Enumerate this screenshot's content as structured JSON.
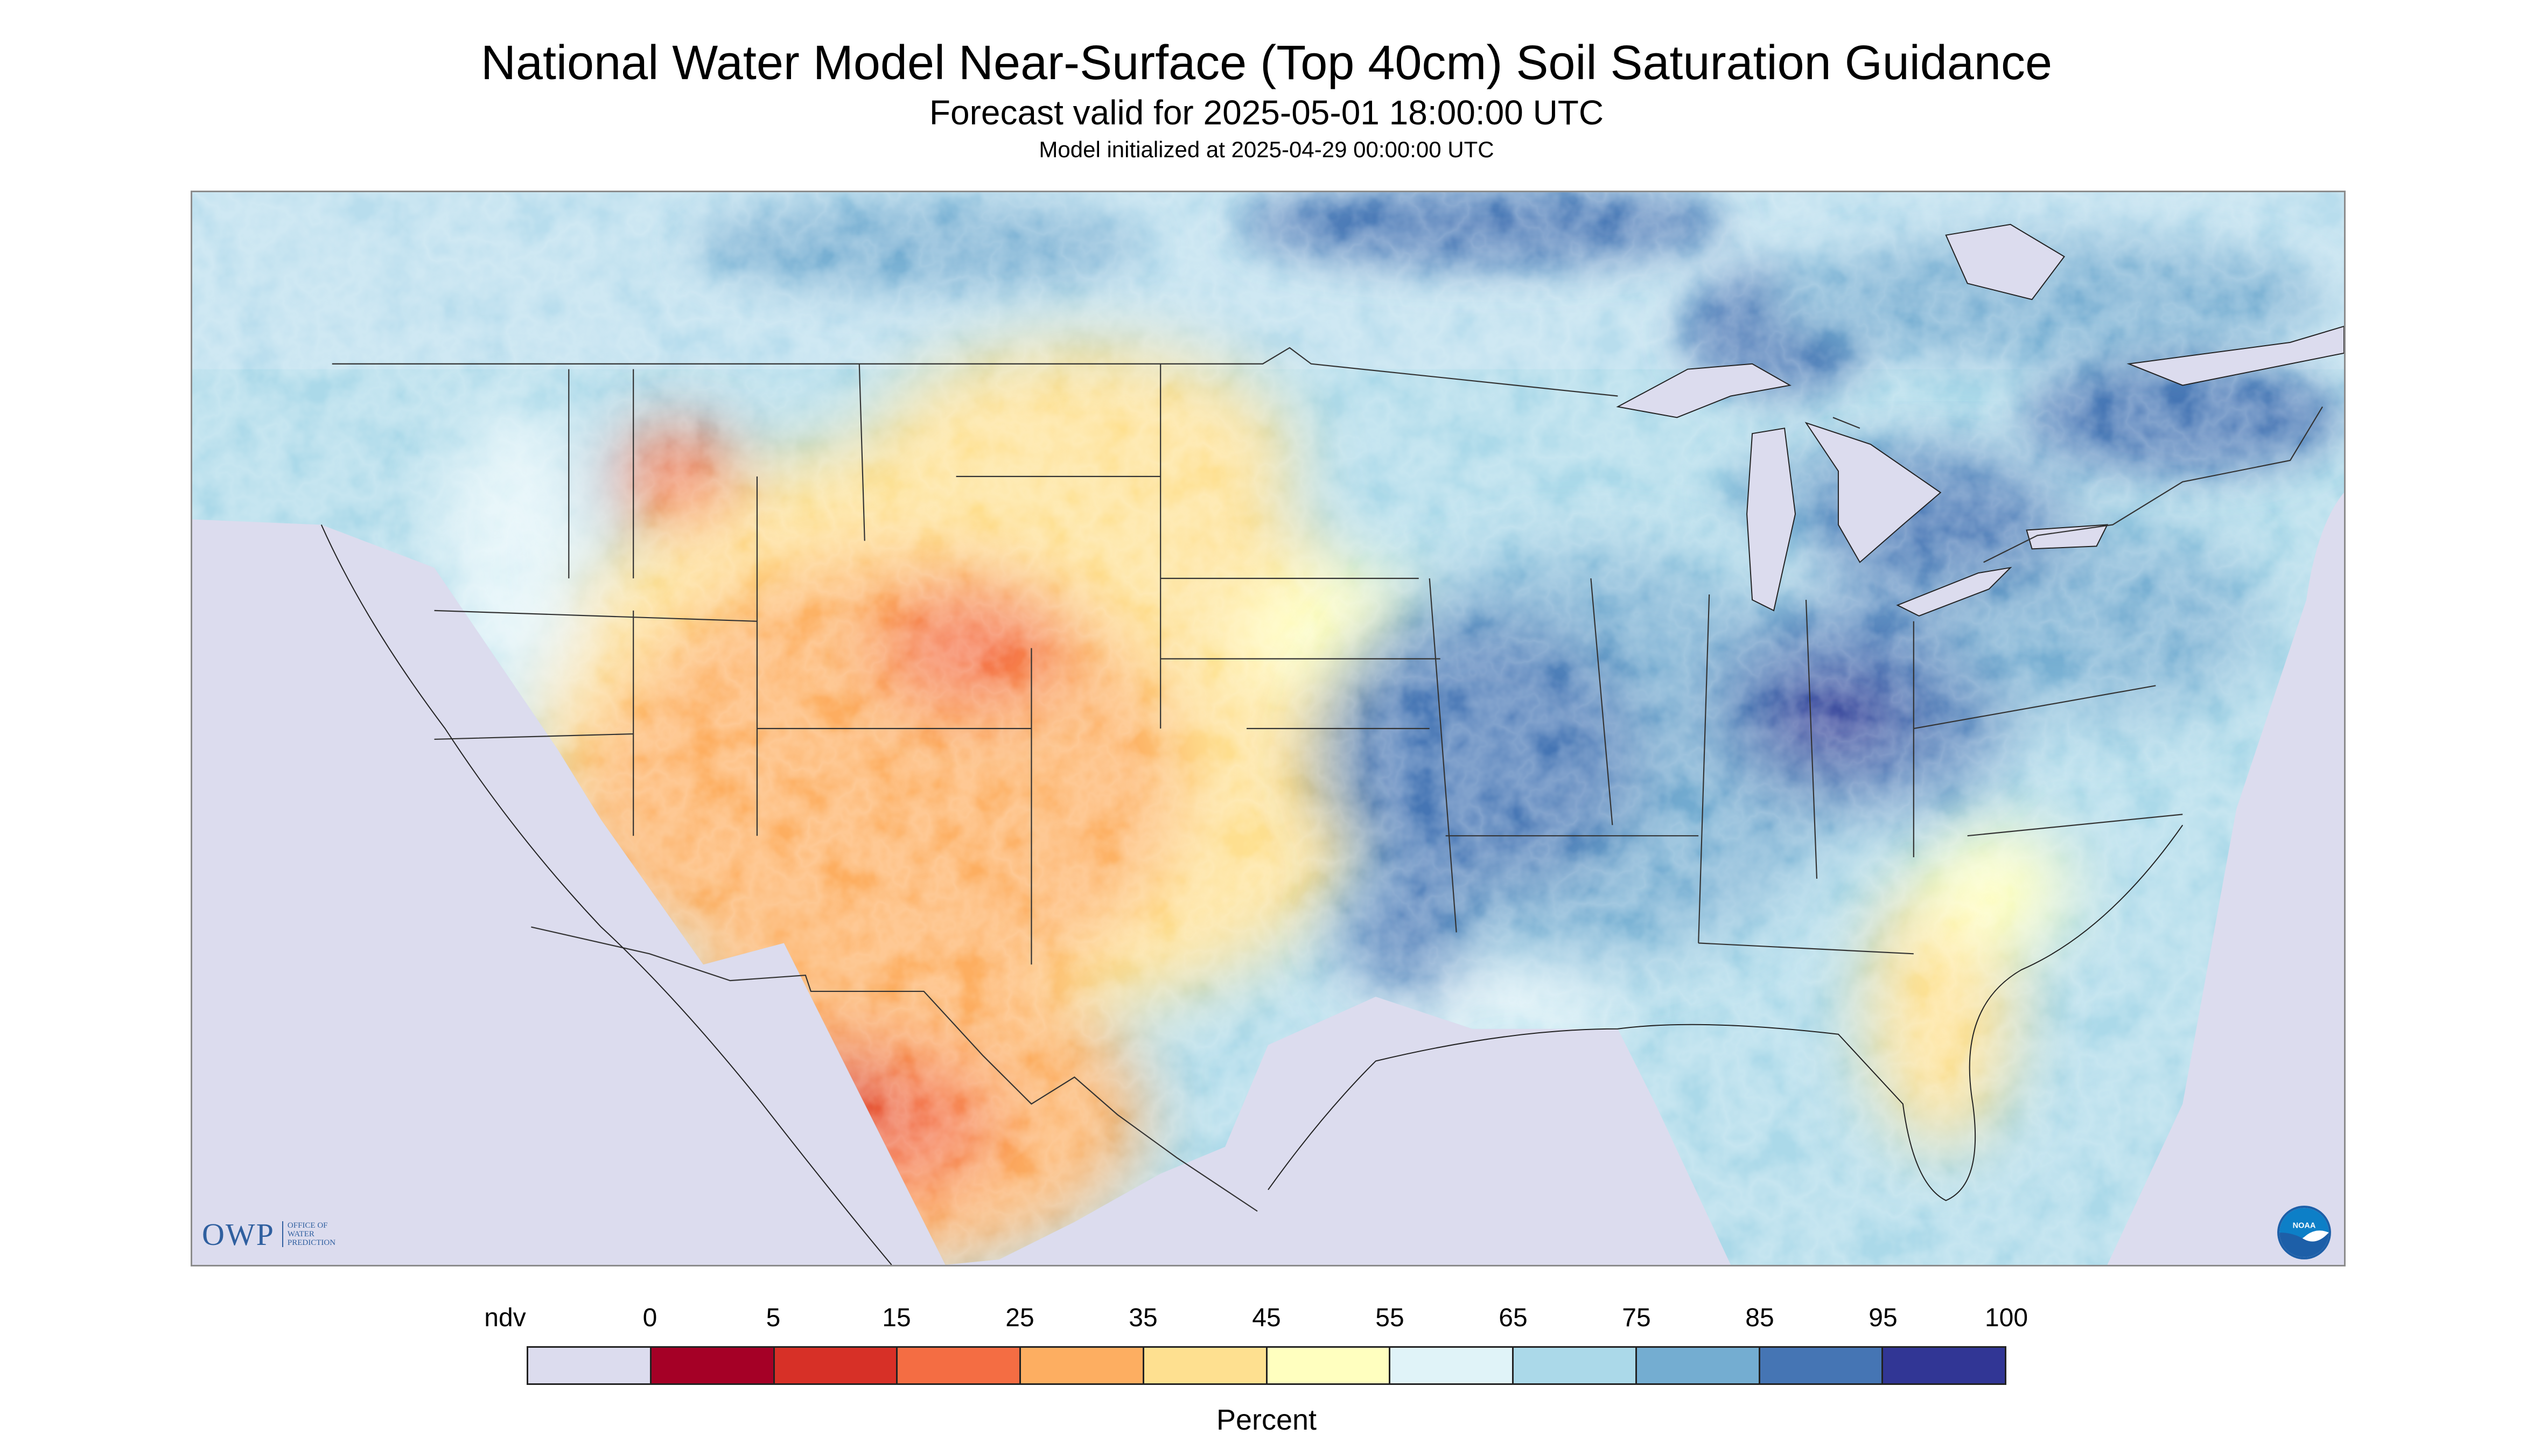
{
  "header": {
    "title": "National Water Model Near-Surface (Top 40cm) Soil Saturation Guidance",
    "subtitle": "Forecast valid for 2025-05-01 18:00:00 UTC",
    "init_line": "Model initialized at 2025-04-29 00:00:00 UTC"
  },
  "map": {
    "description_colors": {
      "ocean_nodata": "#dcdcee",
      "water_bodies": "#dcdcee"
    }
  },
  "logos": {
    "owp_text": "OWP",
    "owp_subtitle": [
      "Office of",
      "Water",
      "Prediction"
    ],
    "noaa_text": "NOAA"
  },
  "legend": {
    "unit_label": "Percent",
    "ticks": [
      "ndv",
      "0",
      "5",
      "15",
      "25",
      "35",
      "45",
      "55",
      "65",
      "75",
      "85",
      "95",
      "100"
    ],
    "colors": [
      "#dcdcee",
      "#a50026",
      "#d73027",
      "#f46d43",
      "#fdae61",
      "#fee090",
      "#ffffbf",
      "#e0f3f8",
      "#abd9e9",
      "#74add1",
      "#4575b4",
      "#313695"
    ]
  }
}
